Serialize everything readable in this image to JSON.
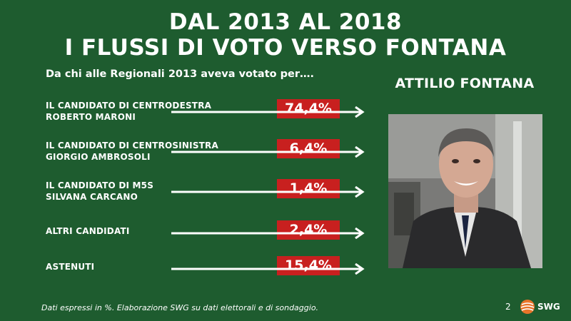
{
  "header": {
    "title_line1": "DAL 2013 AL 2018",
    "title_line2": "I FLUSSI DI VOTO VERSO FONTANA",
    "subtitle": "Da chi alle Regionali 2013 aveva votato per…."
  },
  "candidate": {
    "name": "ATTILIO FONTANA",
    "photo_icon": "portrait-photo-icon"
  },
  "chart_data": {
    "type": "table",
    "rows": [
      {
        "label_line1": "IL CANDIDATO DI CENTRODESTRA",
        "label_line2": "ROBERTO MARONI",
        "value": 74.4,
        "value_label": "74,4%"
      },
      {
        "label_line1": "IL CANDIDATO DI CENTROSINISTRA",
        "label_line2": "GIORGIO AMBROSOLI",
        "value": 6.4,
        "value_label": "6,4%"
      },
      {
        "label_line1": "IL CANDIDATO DI M5S",
        "label_line2": "SILVANA CARCANO",
        "value": 1.4,
        "value_label": "1,4%"
      },
      {
        "label_line1": "ALTRI CANDIDATI",
        "label_line2": "",
        "value": 2.4,
        "value_label": "2,4%"
      },
      {
        "label_line1": "ASTENUTI",
        "label_line2": "",
        "value": 15.4,
        "value_label": "15,4%"
      }
    ]
  },
  "footer": {
    "note": "Dati espressi in %. Elaborazione SWG su dati elettorali e di sondaggio.",
    "page_number": "2",
    "logo_text": "SWG"
  },
  "colors": {
    "background": "#1e5c2f",
    "value_box": "#c8201f",
    "text": "#ffffff",
    "logo_orange": "#e8742a"
  }
}
